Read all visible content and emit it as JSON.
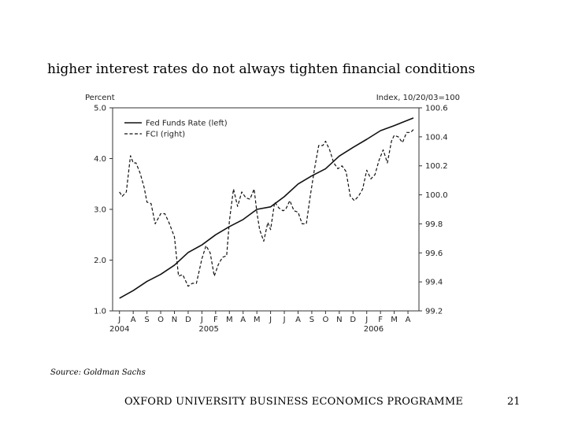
{
  "slide": {
    "title": "higher interest rates do not always tighten financial conditions",
    "source": "Source: Goldman Sachs",
    "footer": "OXFORD UNIVERSITY BUSINESS ECONOMICS PROGRAMME",
    "page_number": "21"
  },
  "chart_data": {
    "type": "line",
    "left_axis": {
      "label": "Percent",
      "ylim": [
        1.0,
        5.0
      ],
      "ticks": [
        "1.0",
        "2.0",
        "3.0",
        "4.0",
        "5.0"
      ]
    },
    "right_axis": {
      "label": "Index, 10/20/03=100",
      "ylim": [
        99.2,
        100.6
      ],
      "ticks": [
        "99.2",
        "99.4",
        "99.6",
        "99.8",
        "100.0",
        "100.2",
        "100.4",
        "100.6"
      ]
    },
    "x_months": [
      "J",
      "A",
      "S",
      "O",
      "N",
      "D",
      "J",
      "F",
      "M",
      "A",
      "M",
      "J",
      "J",
      "A",
      "S",
      "O",
      "N",
      "D",
      "J",
      "F",
      "M",
      "A"
    ],
    "x_years": [
      {
        "label": "2004",
        "month_index": 0
      },
      {
        "label": "2005",
        "month_index": 6.5
      },
      {
        "label": "2006",
        "month_index": 18.5
      }
    ],
    "x_range": [
      -0.5,
      21.8
    ],
    "legend": [
      "Fed Funds Rate (left)",
      "FCI (right)"
    ],
    "series": [
      {
        "name": "Fed Funds Rate (left)",
        "axis": "left",
        "style": "solid",
        "x": [
          0,
          1,
          2,
          3,
          4,
          5,
          6,
          7,
          8,
          9,
          10,
          11,
          12,
          13,
          14,
          15,
          16,
          17,
          18,
          19,
          20,
          21.4
        ],
        "values": [
          1.25,
          1.4,
          1.58,
          1.72,
          1.9,
          2.15,
          2.3,
          2.5,
          2.66,
          2.8,
          3.0,
          3.05,
          3.25,
          3.5,
          3.66,
          3.8,
          4.05,
          4.22,
          4.38,
          4.55,
          4.65,
          4.8
        ]
      },
      {
        "name": "FCI (right)",
        "axis": "right",
        "style": "dashed",
        "x": [
          0,
          0.2,
          0.5,
          0.8,
          1.0,
          1.2,
          1.5,
          1.8,
          2.0,
          2.3,
          2.6,
          3.0,
          3.3,
          3.6,
          4.0,
          4.3,
          4.6,
          4.9,
          5.0,
          5.3,
          5.6,
          6.0,
          6.3,
          6.6,
          6.9,
          7.2,
          7.5,
          7.8,
          8.0,
          8.3,
          8.6,
          8.9,
          9.2,
          9.5,
          9.8,
          10.0,
          10.2,
          10.5,
          10.8,
          11.0,
          11.3,
          11.6,
          11.9,
          12.1,
          12.4,
          12.7,
          13.0,
          13.3,
          13.6,
          13.9,
          14.2,
          14.5,
          14.8,
          15.0,
          15.3,
          15.6,
          15.9,
          16.2,
          16.5,
          16.8,
          17.1,
          17.4,
          17.7,
          18.0,
          18.3,
          18.6,
          18.9,
          19.2,
          19.5,
          19.8,
          20.0,
          20.3,
          20.6,
          20.9,
          21.2,
          21.4
        ],
        "values": [
          100.02,
          99.99,
          100.02,
          100.27,
          100.22,
          100.22,
          100.15,
          100.05,
          99.95,
          99.94,
          99.8,
          99.87,
          99.87,
          99.81,
          99.71,
          99.44,
          99.45,
          99.39,
          99.37,
          99.39,
          99.39,
          99.56,
          99.65,
          99.6,
          99.44,
          99.52,
          99.57,
          99.58,
          99.82,
          100.04,
          99.92,
          100.02,
          99.98,
          99.97,
          100.04,
          99.88,
          99.76,
          99.68,
          99.81,
          99.76,
          99.95,
          99.91,
          99.89,
          99.9,
          99.96,
          99.89,
          99.88,
          99.8,
          99.8,
          100.0,
          100.18,
          100.34,
          100.34,
          100.37,
          100.31,
          100.22,
          100.18,
          100.2,
          100.16,
          99.99,
          99.96,
          99.99,
          100.04,
          100.17,
          100.11,
          100.14,
          100.24,
          100.31,
          100.22,
          100.37,
          100.41,
          100.4,
          100.36,
          100.43,
          100.43,
          100.45
        ]
      }
    ]
  }
}
